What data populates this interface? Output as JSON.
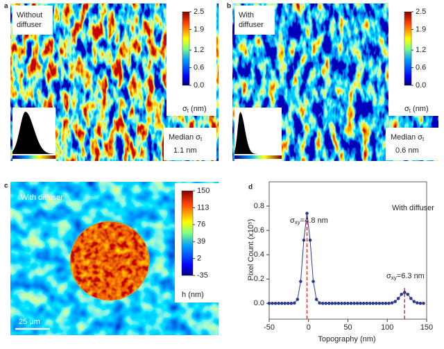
{
  "chart_data": [
    {
      "type": "map",
      "panel": "a",
      "label": [
        "Without",
        "diffuser"
      ],
      "colorbar": {
        "label": {
          "symbol": "σ",
          "subscript": "t",
          "unit": "(nm)"
        },
        "lim": [
          0,
          2.5
        ],
        "ticks": [
          {
            "value": 0,
            "label": "0.0"
          },
          0.6,
          1.2,
          1.9,
          2.5
        ]
      },
      "annotation": {
        "text": "Median σ",
        "subscript": "t",
        "value": "1.1 nm"
      }
    },
    {
      "type": "map",
      "panel": "b",
      "label": [
        "With",
        "diffuser"
      ],
      "colorbar": {
        "label": {
          "symbol": "σ",
          "subscript": "t",
          "unit": "(nm)"
        },
        "lim": [
          0,
          2.5
        ],
        "ticks": [
          {
            "value": 0,
            "label": "0.0"
          },
          0.6,
          1.2,
          1.9,
          2.5
        ]
      },
      "annotation": {
        "text": "Median σ",
        "subscript": "t",
        "value": "0.6 nm"
      }
    },
    {
      "type": "map",
      "panel": "c",
      "label": [
        "With diffuser"
      ],
      "colorbar": {
        "label": "h (nm)",
        "lim": [
          -35,
          150
        ],
        "ticks": [
          150,
          113,
          76,
          39,
          2,
          -35
        ]
      },
      "scale_bar": "25 µm"
    },
    {
      "type": "scatter",
      "panel": "d",
      "x": [
        -50,
        -46,
        -42,
        -38,
        -34,
        -30,
        -26,
        -22,
        -18,
        -14,
        -10,
        -6,
        -2,
        2,
        6,
        10,
        14,
        18,
        22,
        26,
        30,
        34,
        38,
        42,
        46,
        50,
        54,
        58,
        62,
        66,
        70,
        74,
        78,
        82,
        86,
        90,
        94,
        98,
        102,
        106,
        110,
        114,
        118,
        122,
        126,
        130,
        134,
        138,
        142,
        146
      ],
      "series": [
        {
          "color": "#2b3a8f",
          "values": [
            0,
            0,
            0,
            0,
            0,
            0,
            0,
            0,
            0.003,
            0.033,
            0.18,
            0.52,
            0.74,
            0.52,
            0.18,
            0.033,
            0.003,
            0,
            0,
            0,
            0,
            0,
            0,
            0,
            0,
            0,
            0,
            0,
            0,
            0,
            0,
            0,
            0,
            0,
            0,
            0,
            0,
            0,
            0,
            0.004,
            0.015,
            0.04,
            0.074,
            0.09,
            0.074,
            0.04,
            0.015,
            0.004,
            0,
            0
          ]
        }
      ],
      "markers": [
        -2,
        122
      ],
      "marker_color": "#e8332a",
      "xlim": [
        -50,
        150
      ],
      "xticks": [
        -50,
        0,
        50,
        100,
        150
      ],
      "ylim": [
        -0.13,
        1.0
      ],
      "yticks": [
        {
          "value": 0,
          "label": "0.0"
        },
        0.2,
        0.4,
        0.6,
        0.8
      ],
      "xlabel": "Topography (nm)",
      "ylabel": "Pixel Count (x10⁵)",
      "label": "With diffuser",
      "annotations": [
        {
          "symbol": "σ",
          "subscript": "xy",
          "text": "=4.8 nm"
        },
        {
          "symbol": "σ",
          "subscript": "xy",
          "text": "=6.3 nm"
        }
      ]
    }
  ]
}
